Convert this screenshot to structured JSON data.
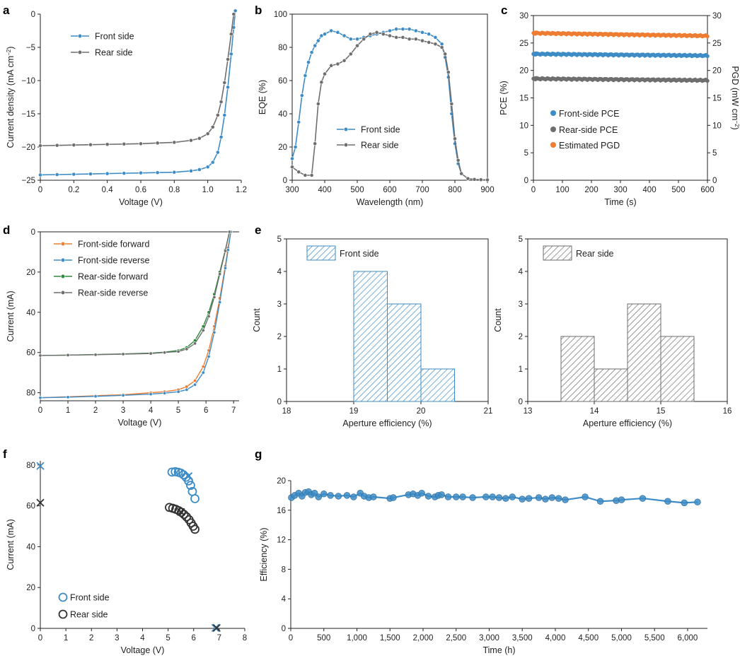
{
  "colors": {
    "blue": "#3d8cc6",
    "gray": "#6e6e6e",
    "orange": "#ee7d31",
    "green": "#2e8b3e",
    "dark": "#333333"
  },
  "chart_data": [
    {
      "id": "a",
      "panel": "a",
      "type": "line",
      "xlabel": "Voltage (V)",
      "ylabel": "Current density (mA cm⁻²)",
      "xlim": [
        0,
        1.2
      ],
      "ylim": [
        -25,
        0
      ],
      "xticks": [
        0,
        0.2,
        0.4,
        0.6,
        0.8,
        1.0,
        1.2
      ],
      "xtick_labels": [
        "0",
        "0.2",
        "0.4",
        "0.6",
        "0.8",
        "1.0",
        "1.2"
      ],
      "yticks": [
        -25,
        -20,
        -15,
        -10,
        -5,
        0
      ],
      "ytick_labels": [
        "−25",
        "−20",
        "−15",
        "−10",
        "−5",
        "0"
      ],
      "series": [
        {
          "name": "Front side",
          "color": "blue",
          "x": [
            0,
            0.1,
            0.2,
            0.3,
            0.4,
            0.5,
            0.6,
            0.7,
            0.8,
            0.9,
            0.95,
            1.0,
            1.03,
            1.06,
            1.08,
            1.1,
            1.12,
            1.14,
            1.155,
            1.165
          ],
          "y": [
            -24.2,
            -24.15,
            -24.1,
            -24.05,
            -24.0,
            -23.95,
            -23.9,
            -23.85,
            -23.8,
            -23.6,
            -23.4,
            -23.0,
            -22.3,
            -20.8,
            -18.5,
            -15.2,
            -11.0,
            -6.0,
            -2.0,
            0.5
          ]
        },
        {
          "name": "Rear side",
          "color": "gray",
          "x": [
            0,
            0.1,
            0.2,
            0.3,
            0.4,
            0.5,
            0.6,
            0.7,
            0.8,
            0.9,
            0.95,
            1.0,
            1.03,
            1.06,
            1.08,
            1.1,
            1.12,
            1.14,
            1.155
          ],
          "y": [
            -19.8,
            -19.75,
            -19.7,
            -19.65,
            -19.6,
            -19.55,
            -19.5,
            -19.4,
            -19.3,
            -19.0,
            -18.7,
            -18.0,
            -17.0,
            -15.2,
            -13.2,
            -10.3,
            -6.8,
            -3.0,
            0.0
          ]
        }
      ]
    },
    {
      "id": "b",
      "panel": "b",
      "type": "line",
      "xlabel": "Wavelength (nm)",
      "ylabel": "EQE (%)",
      "xlim": [
        300,
        900
      ],
      "ylim": [
        0,
        100
      ],
      "xticks": [
        300,
        400,
        500,
        600,
        700,
        800,
        900
      ],
      "xtick_labels": [
        "300",
        "400",
        "500",
        "600",
        "700",
        "800",
        "900"
      ],
      "yticks": [
        0,
        20,
        40,
        60,
        80,
        100
      ],
      "ytick_labels": [
        "0",
        "20",
        "40",
        "60",
        "80",
        "100"
      ],
      "series": [
        {
          "name": "Front side",
          "color": "blue",
          "x": [
            300,
            310,
            320,
            330,
            340,
            350,
            360,
            370,
            380,
            390,
            400,
            420,
            440,
            460,
            480,
            500,
            520,
            540,
            560,
            580,
            600,
            620,
            640,
            660,
            680,
            700,
            720,
            740,
            760,
            770,
            780,
            790,
            800,
            810,
            820
          ],
          "y": [
            13,
            20,
            35,
            51,
            63,
            71,
            77,
            81,
            84,
            87,
            88,
            90,
            89,
            87,
            85,
            85,
            86,
            87,
            88,
            89,
            90,
            91,
            91,
            91,
            90,
            89,
            88,
            86,
            82,
            74,
            62,
            40,
            22,
            10,
            4
          ]
        },
        {
          "name": "Rear side",
          "color": "gray",
          "x": [
            300,
            320,
            340,
            360,
            370,
            380,
            390,
            400,
            420,
            440,
            460,
            480,
            500,
            520,
            540,
            560,
            580,
            600,
            620,
            640,
            660,
            680,
            700,
            720,
            740,
            760,
            770,
            780,
            790,
            800,
            810,
            820,
            840,
            860,
            880,
            900
          ],
          "y": [
            8,
            5,
            3,
            3,
            22,
            46,
            59,
            64,
            69,
            70,
            72,
            76,
            81,
            85,
            88,
            89,
            88,
            87,
            86,
            86,
            85,
            85,
            84,
            83,
            82,
            80,
            76,
            65,
            46,
            25,
            12,
            4,
            1,
            0.5,
            0.3,
            0.2
          ]
        }
      ]
    },
    {
      "id": "c",
      "panel": "c",
      "type": "scatter",
      "xlabel": "Time (s)",
      "ylabel": "PCE (%)",
      "y2label": "PGD (mW cm⁻²)",
      "xlim": [
        0,
        600
      ],
      "ylim": [
        0,
        30
      ],
      "xticks": [
        0,
        100,
        200,
        300,
        400,
        500,
        600
      ],
      "xtick_labels": [
        "0",
        "100",
        "200",
        "300",
        "400",
        "500",
        "600"
      ],
      "yticks": [
        0,
        5,
        10,
        15,
        20,
        25,
        30
      ],
      "ytick_labels": [
        "0",
        "5",
        "10",
        "15",
        "20",
        "25",
        "30"
      ],
      "y2ticks": [
        0,
        5,
        10,
        15,
        20,
        25,
        30
      ],
      "y2tick_labels": [
        "0",
        "5",
        "10",
        "15",
        "20",
        "25",
        "30"
      ],
      "series": [
        {
          "name": "Front-side PCE",
          "color": "blue",
          "x": [
            0,
            600
          ],
          "y": [
            23.0,
            22.7
          ]
        },
        {
          "name": "Rear-side PCE",
          "color": "gray",
          "x": [
            0,
            600
          ],
          "y": [
            18.5,
            18.2
          ]
        },
        {
          "name": "Estimated PGD",
          "color": "orange",
          "x": [
            0,
            600
          ],
          "y": [
            26.8,
            26.3
          ]
        }
      ]
    },
    {
      "id": "d",
      "panel": "d",
      "type": "line",
      "xlabel": "Voltage (V)",
      "ylabel": "Current (mA)",
      "xlim": [
        0,
        7.2
      ],
      "ylim": [
        0,
        84
      ],
      "y_inverted": true,
      "xticks": [
        0,
        1,
        2,
        3,
        4,
        5,
        6,
        7
      ],
      "xtick_labels": [
        "0",
        "1",
        "2",
        "3",
        "4",
        "5",
        "6",
        "7"
      ],
      "yticks": [
        0,
        20,
        40,
        60,
        80
      ],
      "ytick_labels": [
        "0",
        "20",
        "40",
        "60",
        "80"
      ],
      "series": [
        {
          "name": "Front-side forward",
          "color": "orange",
          "x": [
            0,
            1,
            2,
            3,
            4,
            4.5,
            5,
            5.3,
            5.6,
            5.9,
            6.1,
            6.3,
            6.5,
            6.7,
            6.8,
            6.9
          ],
          "y": [
            82.5,
            82.0,
            81.5,
            81.0,
            80.0,
            79.5,
            78.5,
            77.0,
            74.0,
            67.0,
            59.0,
            47.0,
            33.0,
            17.0,
            8.0,
            0
          ]
        },
        {
          "name": "Front-side reverse",
          "color": "blue",
          "x": [
            0,
            1,
            2,
            3,
            4,
            4.5,
            5,
            5.3,
            5.6,
            5.9,
            6.1,
            6.3,
            6.5,
            6.7,
            6.8,
            6.9
          ],
          "y": [
            82.5,
            82.2,
            81.8,
            81.3,
            80.7,
            80.2,
            79.5,
            78.5,
            76.0,
            70.0,
            62.0,
            50.0,
            35.0,
            18.0,
            9.0,
            0
          ]
        },
        {
          "name": "Rear-side forward",
          "color": "green",
          "x": [
            0,
            1,
            2,
            3,
            4,
            4.5,
            5,
            5.3,
            5.6,
            5.9,
            6.1,
            6.3,
            6.5,
            6.7,
            6.85
          ],
          "y": [
            61.5,
            61.3,
            61.0,
            60.7,
            60.3,
            59.8,
            59.0,
            57.5,
            54.0,
            47.0,
            40.0,
            31.0,
            20.0,
            9.0,
            0
          ]
        },
        {
          "name": "Rear-side reverse",
          "color": "gray",
          "x": [
            0,
            1,
            2,
            3,
            4,
            4.5,
            5,
            5.3,
            5.6,
            5.9,
            6.1,
            6.3,
            6.5,
            6.7,
            6.85
          ],
          "y": [
            61.5,
            61.3,
            61.1,
            60.8,
            60.5,
            60.0,
            59.5,
            58.3,
            55.5,
            49.0,
            42.0,
            32.5,
            21.0,
            9.5,
            0
          ]
        }
      ]
    },
    {
      "id": "e1",
      "panel": "e",
      "type": "bar",
      "xlabel": "Aperture efficiency (%)",
      "ylabel": "Count",
      "xlim": [
        18,
        21
      ],
      "ylim": [
        0,
        5
      ],
      "xticks": [
        18,
        19,
        20,
        21
      ],
      "xtick_labels": [
        "18",
        "19",
        "20",
        "21"
      ],
      "yticks": [
        0,
        1,
        2,
        3,
        4,
        5
      ],
      "ytick_labels": [
        "0",
        "1",
        "2",
        "3",
        "4",
        "5"
      ],
      "bin_width": 0.5,
      "bins": [
        19.0,
        19.5,
        20.0
      ],
      "values": [
        4,
        3,
        1
      ],
      "legend": "Front side",
      "color": "blue"
    },
    {
      "id": "e2",
      "type": "bar",
      "xlabel": "Aperture efficiency (%)",
      "ylabel": "Count",
      "xlim": [
        13,
        16
      ],
      "ylim": [
        0,
        5
      ],
      "xticks": [
        13,
        14,
        15,
        16
      ],
      "xtick_labels": [
        "13",
        "14",
        "15",
        "16"
      ],
      "yticks": [
        0,
        1,
        2,
        3,
        4,
        5
      ],
      "ytick_labels": [
        "0",
        "1",
        "2",
        "3",
        "4",
        "5"
      ],
      "bin_width": 0.5,
      "bins": [
        13.5,
        14.0,
        14.5,
        15.0
      ],
      "values": [
        2,
        1,
        3,
        2
      ],
      "legend": "Rear side",
      "color": "gray"
    },
    {
      "id": "f",
      "panel": "f",
      "type": "scatter",
      "xlabel": "Voltage (V)",
      "ylabel": "Current (mA)",
      "xlim": [
        0,
        8
      ],
      "ylim": [
        0,
        82
      ],
      "xticks": [
        0,
        1,
        2,
        3,
        4,
        5,
        6,
        7,
        8
      ],
      "xtick_labels": [
        "0",
        "1",
        "2",
        "3",
        "4",
        "5",
        "6",
        "7",
        "8"
      ],
      "yticks": [
        0,
        20,
        40,
        60,
        80
      ],
      "ytick_labels": [
        "0",
        "20",
        "40",
        "60",
        "80"
      ],
      "series": [
        {
          "name": "Front side",
          "color": "blue",
          "marker": "circle",
          "x": [
            5.15,
            5.28,
            5.4,
            5.5,
            5.6,
            5.7,
            5.8,
            5.88,
            5.95,
            6.05
          ],
          "y": [
            76.5,
            76.7,
            76.4,
            76.0,
            75.2,
            74.0,
            72.2,
            70.0,
            67.0,
            63.5
          ]
        },
        {
          "name": "Rear side",
          "color": "dark",
          "marker": "circle",
          "x": [
            5.05,
            5.18,
            5.3,
            5.42,
            5.52,
            5.62,
            5.72,
            5.82,
            5.9,
            5.98,
            6.05
          ],
          "y": [
            59.2,
            58.8,
            58.3,
            57.6,
            56.8,
            55.8,
            54.6,
            53.2,
            51.6,
            50.0,
            48.5
          ]
        }
      ],
      "markers_x": [
        {
          "color": "blue",
          "x": 0.0,
          "y": 79.5
        },
        {
          "color": "blue",
          "x": 5.8,
          "y": 74.5
        },
        {
          "color": "blue",
          "x": 6.85,
          "y": 0.2
        },
        {
          "color": "dark",
          "x": 0.0,
          "y": 61.5
        },
        {
          "color": "dark",
          "x": 5.5,
          "y": 57.0
        },
        {
          "color": "dark",
          "x": 6.9,
          "y": 0.2
        }
      ]
    },
    {
      "id": "g",
      "panel": "g",
      "type": "line",
      "xlabel": "Time (h)",
      "ylabel": "Efficiency (%)",
      "xlim": [
        0,
        6300
      ],
      "ylim": [
        0,
        20
      ],
      "xticks": [
        0,
        500,
        1000,
        1500,
        2000,
        2500,
        3000,
        3500,
        4000,
        4500,
        5000,
        5500,
        6000
      ],
      "xtick_labels": [
        "0",
        "500",
        "1,000",
        "1,500",
        "2,000",
        "2,500",
        "3,000",
        "3,500",
        "4,000",
        "4,500",
        "5,000",
        "5,500",
        "6,000"
      ],
      "yticks": [
        0,
        4,
        8,
        12,
        16,
        20
      ],
      "ytick_labels": [
        "0",
        "4",
        "8",
        "12",
        "16",
        "20"
      ],
      "series": [
        {
          "name": "Efficiency",
          "color": "blue",
          "x": [
            10,
            60,
            120,
            170,
            220,
            270,
            310,
            360,
            420,
            500,
            600,
            720,
            850,
            950,
            1050,
            1110,
            1180,
            1250,
            1500,
            1550,
            1780,
            1850,
            1920,
            1980,
            2080,
            2180,
            2230,
            2280,
            2380,
            2500,
            2600,
            2750,
            2950,
            3050,
            3150,
            3250,
            3350,
            3500,
            3600,
            3750,
            3850,
            3950,
            4050,
            4150,
            4450,
            4680,
            4920,
            5000,
            5320,
            5700,
            5950,
            6150
          ],
          "y": [
            17.7,
            18.0,
            18.3,
            17.9,
            18.4,
            18.5,
            18.1,
            18.3,
            17.8,
            18.2,
            18.0,
            17.9,
            18.0,
            17.8,
            18.3,
            17.9,
            17.7,
            17.8,
            17.6,
            17.7,
            18.1,
            18.2,
            18.0,
            18.3,
            17.9,
            17.8,
            18.0,
            18.1,
            17.8,
            17.8,
            17.8,
            17.7,
            17.8,
            17.8,
            17.7,
            17.6,
            17.8,
            17.5,
            17.6,
            17.7,
            17.5,
            17.7,
            17.6,
            17.4,
            17.8,
            17.2,
            17.3,
            17.4,
            17.6,
            17.2,
            17.0,
            17.1
          ]
        }
      ]
    }
  ]
}
